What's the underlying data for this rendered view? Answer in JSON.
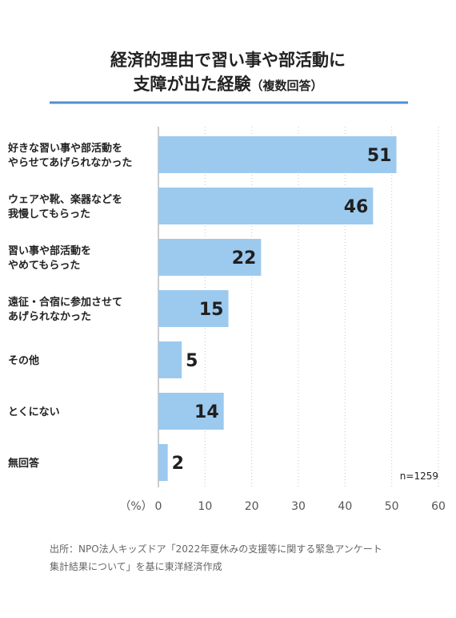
{
  "chart_data": {
    "type": "bar",
    "orientation": "horizontal",
    "title": "経済的理由で習い事や部活動に支障が出た経験",
    "title_lines": [
      "経済的理由で習い事や部活動に",
      "支障が出た経験"
    ],
    "title_suffix": "（複数回答）",
    "categories": [
      [
        "好きな習い事や部活動を",
        "やらせてあげられなかった"
      ],
      [
        "ウェアや靴、楽器などを",
        "我慢してもらった"
      ],
      [
        "習い事や部活動を",
        "やめてもらった"
      ],
      [
        "遠征・合宿に参加させて",
        "あげられなかった"
      ],
      [
        "その他"
      ],
      [
        "とくにない"
      ],
      [
        "無回答"
      ]
    ],
    "values": [
      51,
      46,
      22,
      15,
      5,
      14,
      2
    ],
    "xlim": [
      0,
      60
    ],
    "xticks": [
      0,
      10,
      20,
      30,
      40,
      50,
      60
    ],
    "xunit": "（%）",
    "sample_note": "n=1259",
    "grid": "vertical dotted",
    "bar_color": "#9cc9ee",
    "accent_color": "#4f8fcf",
    "source_lines": [
      "出所：NPO法人キッズドア「2022年夏休みの支援等に関する緊急アンケート",
      "集計結果について」を基に東洋経済作成"
    ]
  }
}
